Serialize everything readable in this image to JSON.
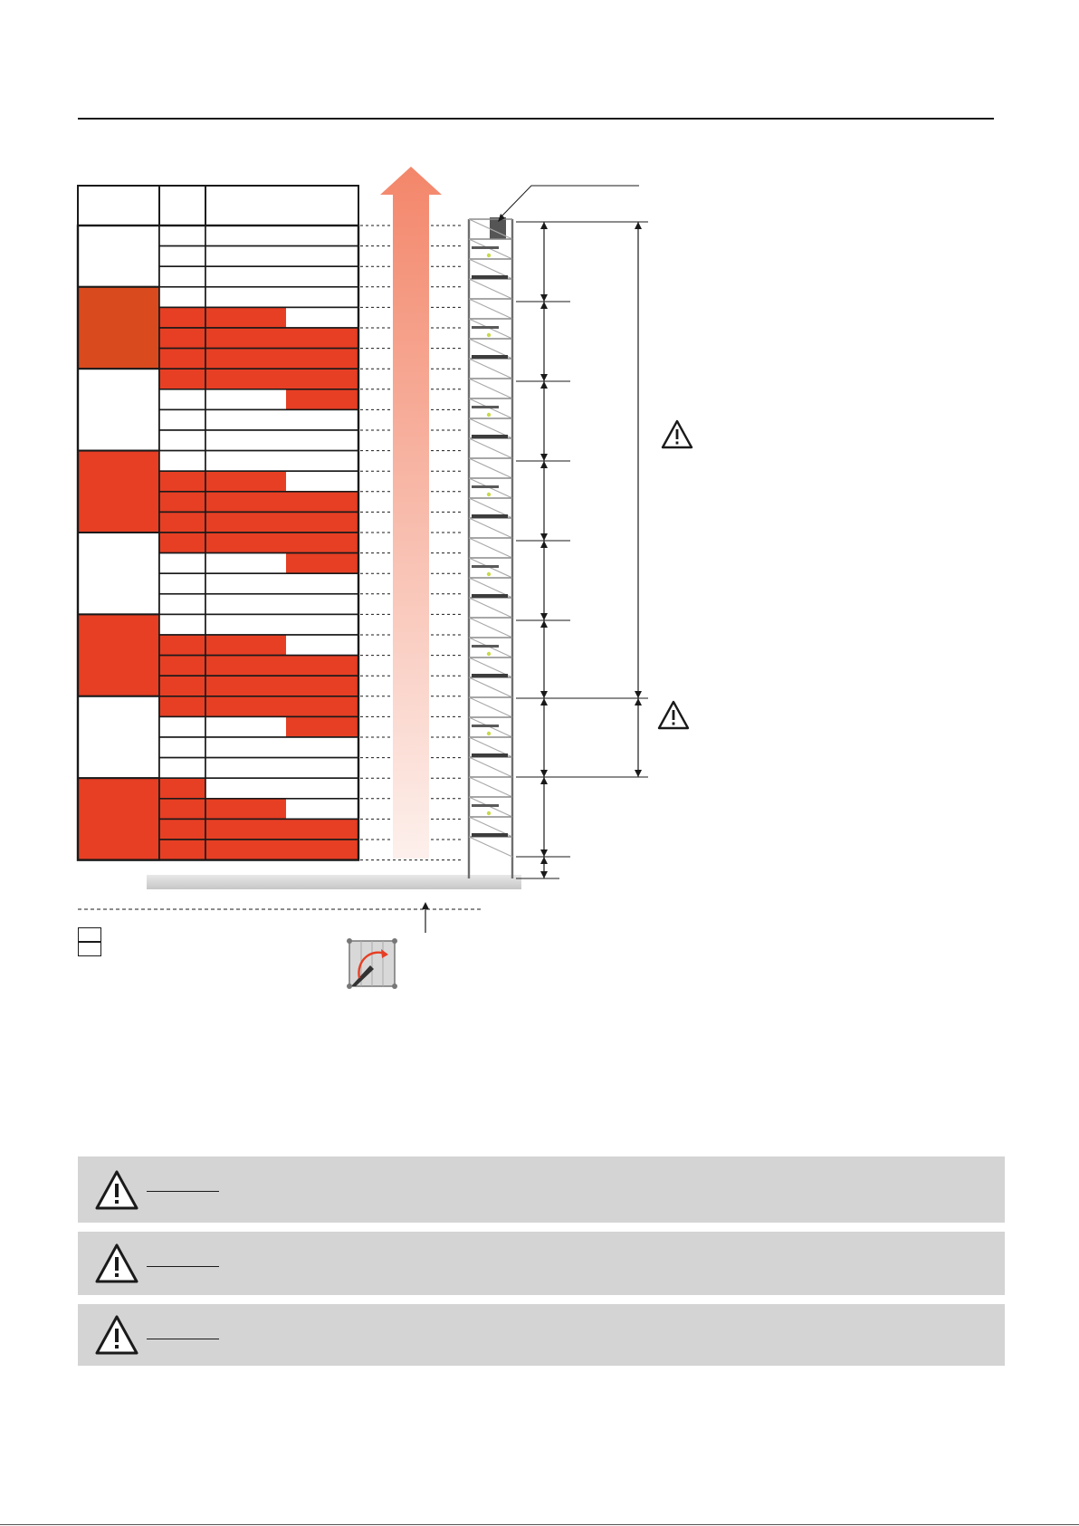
{
  "colors": {
    "red": "#e63f24",
    "red_dark": "#d94a1e",
    "outline": "#1a1a1a",
    "panel_grey": "#d4d4d4",
    "arrow_top": "#f3866a",
    "arrow_bottom": "#fdf0ec",
    "scaffold": "#8a8a8a"
  },
  "table": {
    "header": [
      "",
      "",
      ""
    ],
    "groups": [
      {
        "fill": "white",
        "rows": [
          {
            "level": "white",
            "bar": "white"
          },
          {
            "level": "white",
            "bar": "white"
          },
          {
            "level": "white",
            "bar": "white"
          }
        ]
      },
      {
        "fill": "red_dark",
        "rows": [
          {
            "level": "white",
            "bar": "white"
          },
          {
            "level": "red",
            "bar": "half-left"
          },
          {
            "level": "red",
            "bar": "red"
          },
          {
            "level": "red",
            "bar": "red"
          }
        ]
      },
      {
        "fill": "white",
        "rows": [
          {
            "level": "red",
            "bar": "red"
          },
          {
            "level": "white",
            "bar": "half-right"
          },
          {
            "level": "white",
            "bar": "white"
          },
          {
            "level": "white",
            "bar": "white"
          }
        ]
      },
      {
        "fill": "red",
        "rows": [
          {
            "level": "white",
            "bar": "white"
          },
          {
            "level": "red",
            "bar": "half-left"
          },
          {
            "level": "red",
            "bar": "red"
          },
          {
            "level": "red",
            "bar": "red"
          }
        ]
      },
      {
        "fill": "white",
        "rows": [
          {
            "level": "red",
            "bar": "red"
          },
          {
            "level": "white",
            "bar": "half-right"
          },
          {
            "level": "white",
            "bar": "white"
          },
          {
            "level": "white",
            "bar": "white"
          }
        ]
      },
      {
        "fill": "red",
        "rows": [
          {
            "level": "white",
            "bar": "white"
          },
          {
            "level": "red",
            "bar": "half-left"
          },
          {
            "level": "red",
            "bar": "red"
          },
          {
            "level": "red",
            "bar": "red"
          }
        ]
      },
      {
        "fill": "white",
        "rows": [
          {
            "level": "red",
            "bar": "red"
          },
          {
            "level": "white",
            "bar": "half-right"
          },
          {
            "level": "white",
            "bar": "white"
          },
          {
            "level": "white",
            "bar": "white"
          }
        ]
      },
      {
        "fill": "red",
        "rows": [
          {
            "level": "red",
            "bar": "white"
          },
          {
            "level": "red",
            "bar": "half-left"
          },
          {
            "level": "red",
            "bar": "red"
          },
          {
            "level": "red",
            "bar": "red"
          }
        ]
      }
    ]
  },
  "legend": {
    "items": [
      "",
      ""
    ]
  },
  "icons": {
    "warning_diagram": "warning-triangle-icon",
    "rotate": "rotate-arrow-icon"
  },
  "warning_panels": [
    {
      "title": "",
      "text": ""
    },
    {
      "title": "",
      "text": ""
    },
    {
      "title": "",
      "text": ""
    }
  ]
}
